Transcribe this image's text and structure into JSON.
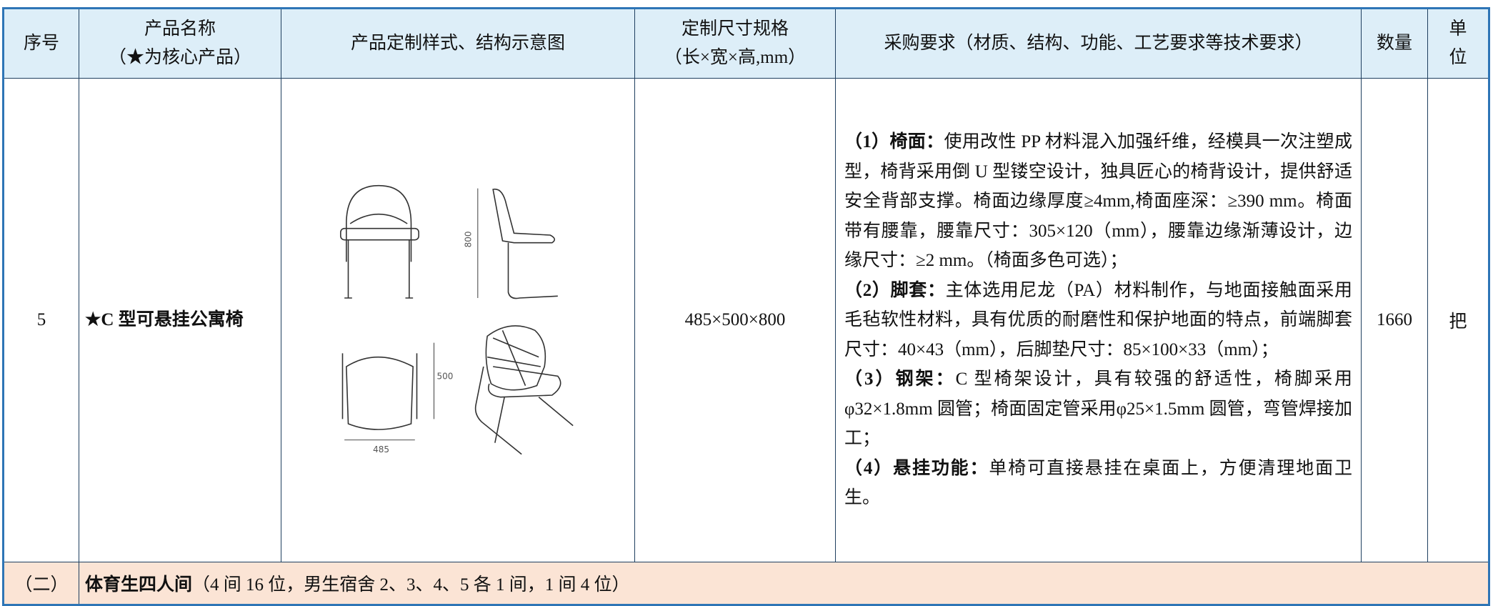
{
  "header": {
    "index": "序号",
    "product_name": "产品名称",
    "product_note": "（★为核心产品）",
    "drawing": "产品定制样式、结构示意图",
    "size": "定制尺寸规格",
    "size_note": "（长×宽×高,mm）",
    "requirements": "采购要求（材质、结构、功能、工艺要求等技术要求）",
    "quantity": "数量",
    "unit": "单位"
  },
  "row": {
    "index": "5",
    "product_name": "★C 型可悬挂公寓椅",
    "drawing_labels": {
      "height": "800",
      "depth": "500",
      "width": "485"
    },
    "size": "485×500×800",
    "requirements": [
      {
        "number": "（1）",
        "heading": "椅面：",
        "text": "使用改性 PP 材料混入加强纤维，经模具一次注塑成型，椅背采用倒 U 型镂空设计，独具匠心的椅背设计，提供舒适安全背部支撑。椅面边缘厚度≥4mm,椅面座深：≥390 mm。椅面带有腰靠，腰靠尺寸：305×120（mm），腰靠边缘渐薄设计，边缘尺寸：≥2 mm。（椅面多色可选）；"
      },
      {
        "number": "（2）",
        "heading": "脚套：",
        "text": "主体选用尼龙（PA）材料制作，与地面接触面采用毛毡软性材料，具有优质的耐磨性和保护地面的特点，前端脚套尺寸：40×43（mm），后脚垫尺寸：85×100×33（mm）；"
      },
      {
        "number": "（3）",
        "heading": "钢架：",
        "text": "C 型椅架设计，具有较强的舒适性，椅脚采用φ32×1.8mm 圆管；椅面固定管采用φ25×1.5mm 圆管，弯管焊接加工；"
      },
      {
        "number": "（4）",
        "heading": "悬挂功能：",
        "text": "单椅可直接悬挂在桌面上，方便清理地面卫生。"
      }
    ],
    "quantity": "1660",
    "unit": "把"
  },
  "section": {
    "index": "（二）",
    "title": "体育生四人间",
    "note": "（4 间 16 位，男生宿舍 2、3、4、5 各 1 间，1 间 4 位）"
  }
}
